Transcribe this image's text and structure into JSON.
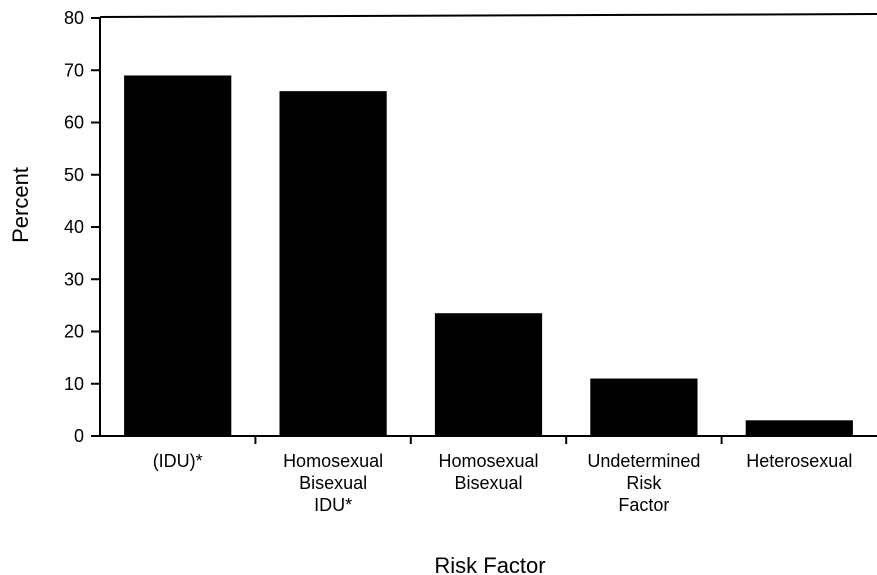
{
  "chart_data": {
    "type": "bar",
    "x_label": "Risk Factor",
    "y_label": "Percent",
    "categories": [
      "(IDU)*",
      "Homosexual\nBisexual\nIDU*",
      "Homosexual\nBisexual",
      "Undetermined\nRisk\nFactor",
      "Heterosexual"
    ],
    "values": [
      69,
      66,
      23.5,
      11,
      3
    ],
    "color": "#000000",
    "ylim": [
      0,
      80
    ],
    "yticks": [
      0,
      10,
      20,
      30,
      40,
      50,
      60,
      70,
      80
    ],
    "grid": false
  }
}
